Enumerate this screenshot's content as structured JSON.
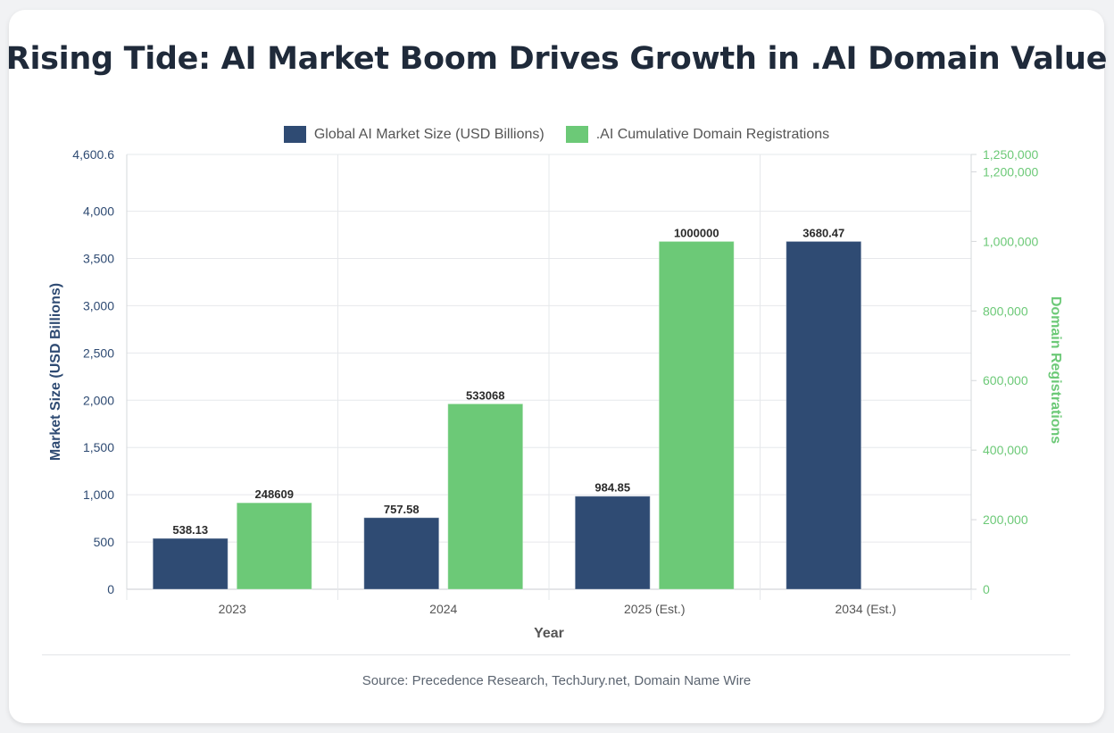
{
  "title": "Rising Tide: AI Market Boom Drives Growth in .AI Domain Value",
  "source": "Source: Precedence Research, TechJury.net, Domain Name Wire",
  "colors": {
    "market": "#2f4b73",
    "domains": "#6cc977",
    "right_axis_text": "#6cc977",
    "left_axis_text": "#2f4b73"
  },
  "chart_data": {
    "type": "bar",
    "categories": [
      "2023",
      "2024",
      "2025 (Est.)",
      "2034 (Est.)"
    ],
    "series": [
      {
        "name": "Global AI Market Size (USD Billions)",
        "axis": "left",
        "values": [
          538.13,
          757.58,
          984.85,
          3680.47
        ],
        "labels": [
          "538.13",
          "757.58",
          "984.85",
          "3680.47"
        ]
      },
      {
        "name": ".AI Cumulative Domain Registrations",
        "axis": "right",
        "values": [
          248609,
          533068,
          1000000,
          null
        ],
        "labels": [
          "248609",
          "533068",
          "1000000",
          ""
        ]
      }
    ],
    "xlabel": "Year",
    "ylabel": "Market Size (USD Billions)",
    "y2label": "Domain Registrations",
    "ylim": [
      0,
      4600.6
    ],
    "y2lim": [
      0,
      1250000
    ],
    "yticks": [
      0,
      500,
      1000,
      1500,
      2000,
      2500,
      3000,
      3500,
      4000,
      4600.6
    ],
    "yticklabels": [
      "0",
      "500",
      "1,000",
      "1,500",
      "2,000",
      "2,500",
      "3,000",
      "3,500",
      "4,000",
      "4,600.6"
    ],
    "y2ticks": [
      0,
      200000,
      400000,
      600000,
      800000,
      1000000,
      1200000,
      1250000
    ],
    "y2ticklabels": [
      "0",
      "200,000",
      "400,000",
      "600,000",
      "800,000",
      "1,000,000",
      "1,200,000",
      "1,250,000"
    ],
    "legend_position": "top",
    "grid": true
  }
}
